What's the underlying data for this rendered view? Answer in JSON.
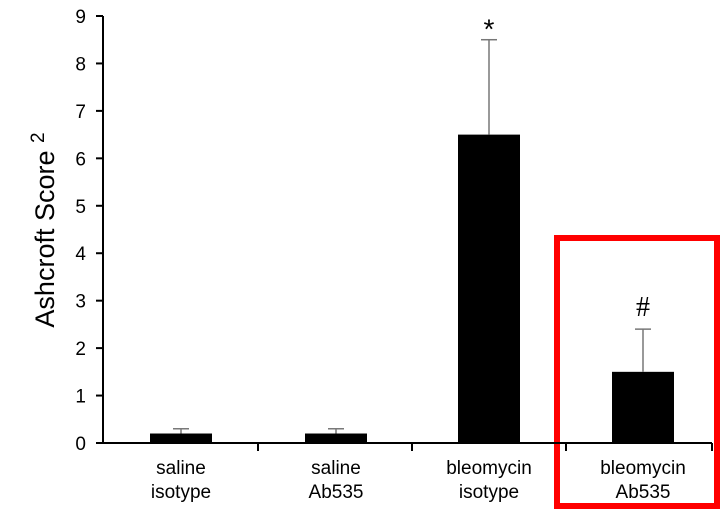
{
  "chart_data": {
    "type": "bar",
    "title": "",
    "xlabel": "",
    "ylabel": "Ashcroft Score",
    "ylabel_superscript": "2",
    "ylim": [
      0,
      9
    ],
    "yticks": [
      0,
      1,
      2,
      3,
      4,
      5,
      6,
      7,
      8,
      9
    ],
    "grid": false,
    "categories": [
      [
        "saline",
        "isotype"
      ],
      [
        "saline",
        "Ab535"
      ],
      [
        "bleomycin",
        "isotype"
      ],
      [
        "bleomycin",
        "Ab535"
      ]
    ],
    "series": [
      {
        "values": [
          0.2,
          0.2,
          6.5,
          1.5
        ],
        "error": [
          0.1,
          0.1,
          2.0,
          0.9
        ],
        "color": "#000000"
      }
    ],
    "annotations": [
      {
        "category_index": 2,
        "text": "*"
      },
      {
        "category_index": 3,
        "text": "#"
      }
    ],
    "highlight": {
      "category_index": 3,
      "color": "#ff0000"
    }
  }
}
